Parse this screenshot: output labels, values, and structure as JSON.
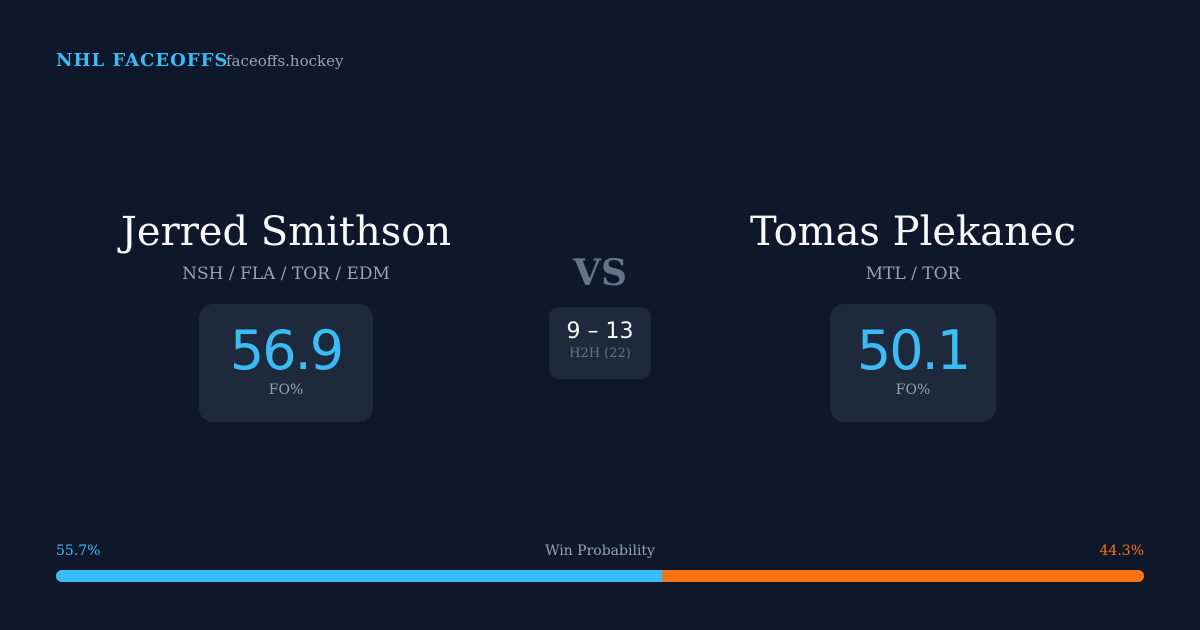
{
  "header": {
    "brand": "NHL FACEOFFS",
    "site": "faceoffs.hockey"
  },
  "player1": {
    "name": "Jerred Smithson",
    "teams": "NSH / FLA / TOR / EDM",
    "fo_pct": "56.9",
    "fo_label": "FO%"
  },
  "player2": {
    "name": "Tomas Plekanec",
    "teams": "MTL / TOR",
    "fo_pct": "50.1",
    "fo_label": "FO%"
  },
  "vs": "VS",
  "h2h": {
    "score": "9 – 13",
    "label": "H2H (22)"
  },
  "win_probability": {
    "label": "Win Probability",
    "left": "55.7%",
    "right": "44.3%",
    "left_value": 55.7,
    "right_value": 44.3,
    "colors": {
      "left": "#38bdf8",
      "right": "#f97316"
    }
  }
}
